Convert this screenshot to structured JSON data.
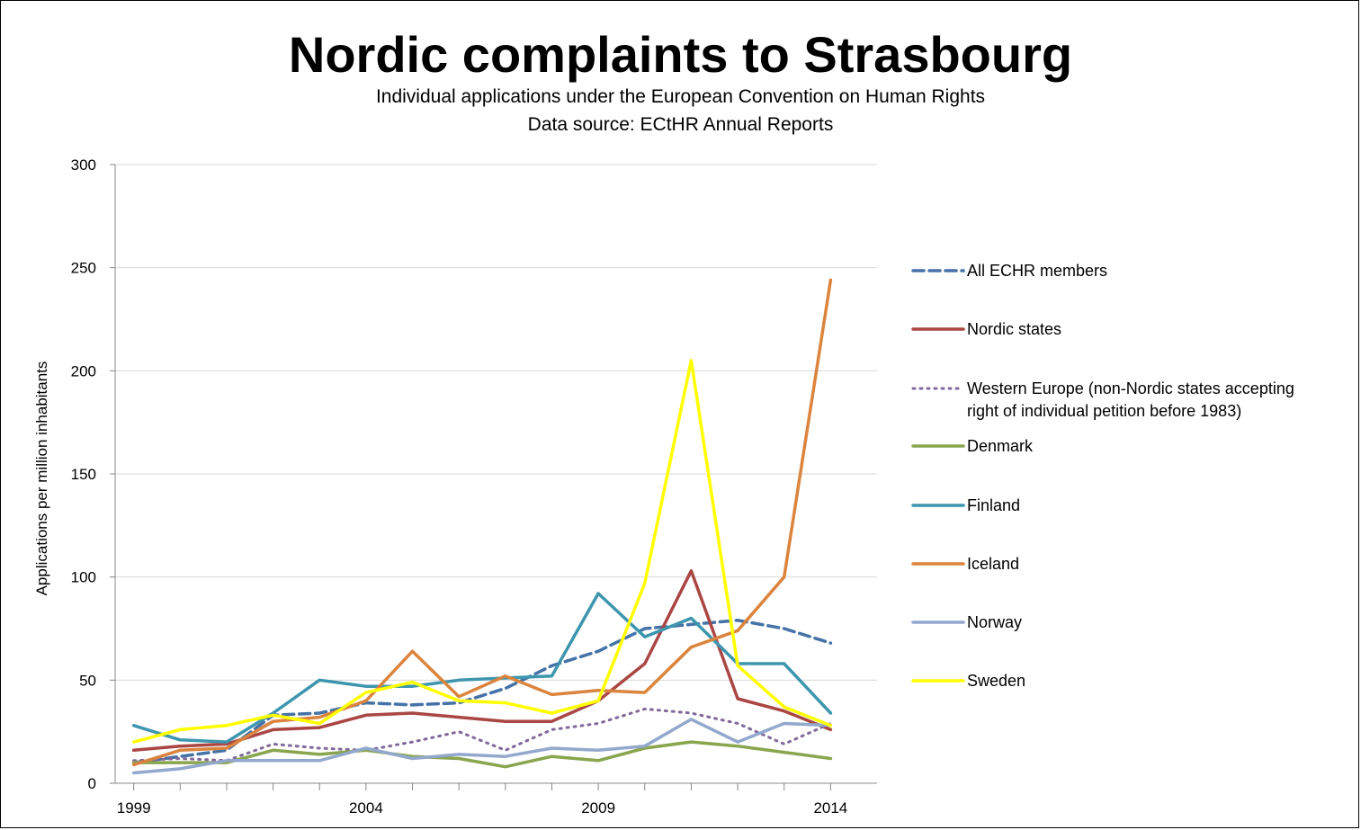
{
  "chart_data": {
    "type": "line",
    "title": "Nordic complaints to Strasbourg",
    "subtitle_lines": [
      "Individual applications under the European Convention on Human Rights",
      "Data source: ECtHR Annual Reports"
    ],
    "xlabel": "",
    "ylabel": "Applications per million inhabitants",
    "x": [
      1999,
      2000,
      2001,
      2002,
      2003,
      2004,
      2005,
      2006,
      2007,
      2008,
      2009,
      2010,
      2011,
      2012,
      2013,
      2014
    ],
    "x_tick_labels": [
      "1999",
      "2004",
      "2009",
      "2014"
    ],
    "x_tick_values": [
      1999,
      2004,
      2009,
      2014
    ],
    "xlim": [
      1998.6,
      2015.0
    ],
    "ylim": [
      0,
      300
    ],
    "y_ticks": [
      0,
      50,
      100,
      150,
      200,
      250,
      300
    ],
    "y_tick_labels": [
      "0",
      "50",
      "100",
      "150",
      "200",
      "250",
      "300"
    ],
    "grid": "horizontal",
    "legend_position": "right",
    "series": [
      {
        "name": "All ECHR members",
        "color": "#4572a7",
        "style": "dashed",
        "values": [
          10,
          13,
          16,
          33,
          34,
          39,
          38,
          39,
          46,
          57,
          64,
          75,
          77,
          79,
          75,
          68
        ]
      },
      {
        "name": "Nordic states",
        "color": "#aa4643",
        "style": "solid",
        "values": [
          16,
          18,
          19,
          26,
          27,
          33,
          34,
          32,
          30,
          30,
          40,
          58,
          103,
          41,
          35,
          26
        ]
      },
      {
        "name": "Western Europe (non-Nordic states accepting right of individual petition before 1983)",
        "legend_lines": [
          "Western Europe (non-Nordic states accepting",
          "right of individual petition before 1983)"
        ],
        "color": "#80699b",
        "style": "dotted",
        "values": [
          11,
          12,
          11,
          19,
          17,
          16,
          20,
          25,
          16,
          26,
          29,
          36,
          34,
          29,
          19,
          29
        ]
      },
      {
        "name": "Denmark",
        "color": "#89a54e",
        "style": "solid",
        "values": [
          10,
          10,
          10,
          16,
          14,
          16,
          13,
          12,
          8,
          13,
          11,
          17,
          20,
          18,
          15,
          12
        ]
      },
      {
        "name": "Finland",
        "color": "#3d96ae",
        "style": "solid",
        "values": [
          28,
          21,
          20,
          34,
          50,
          47,
          47,
          50,
          51,
          52,
          92,
          71,
          80,
          58,
          58,
          34
        ]
      },
      {
        "name": "Iceland",
        "color": "#db843d",
        "style": "solid",
        "values": [
          9,
          16,
          17,
          30,
          32,
          40,
          64,
          42,
          52,
          43,
          45,
          44,
          66,
          74,
          100,
          244
        ]
      },
      {
        "name": "Norway",
        "color": "#92a8cd",
        "style": "solid",
        "values": [
          5,
          7,
          11,
          11,
          11,
          17,
          12,
          14,
          13,
          17,
          16,
          18,
          31,
          20,
          29,
          28
        ]
      },
      {
        "name": "Sweden",
        "color": "#ffff00",
        "style": "solid",
        "values": [
          20,
          26,
          28,
          33,
          29,
          44,
          49,
          40,
          39,
          34,
          40,
          97,
          205,
          57,
          37,
          28
        ]
      }
    ]
  }
}
